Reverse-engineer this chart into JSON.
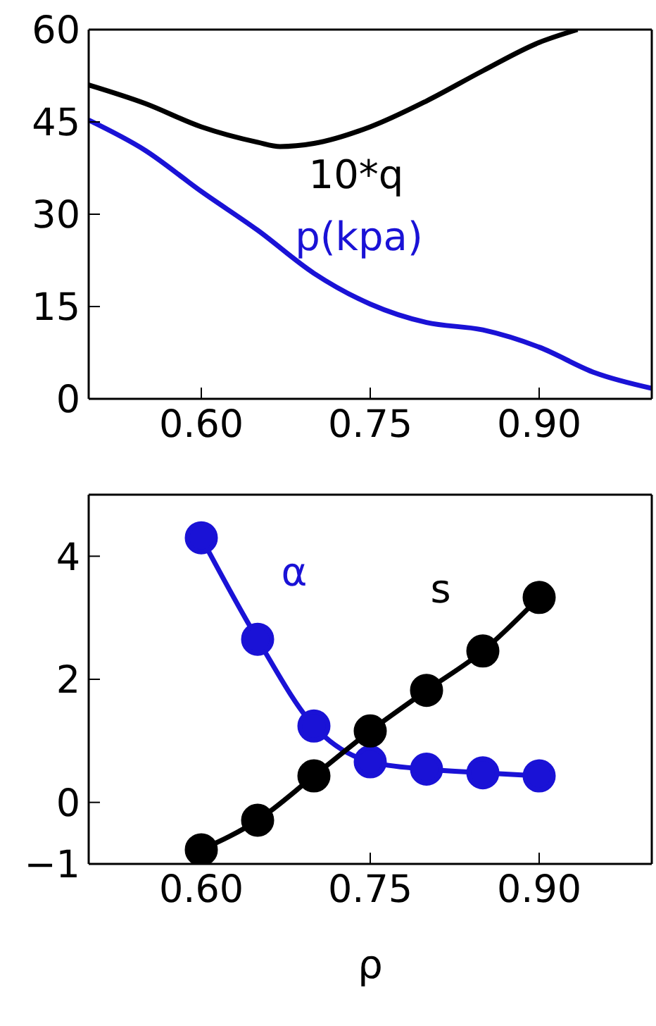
{
  "chart_data": [
    {
      "type": "line",
      "marker": "none",
      "line_style": "solid",
      "legend": false,
      "xlim": [
        0.5,
        1.0
      ],
      "xticks": [
        {
          "value": 0.6,
          "label": "0.60"
        },
        {
          "value": 0.75,
          "label": "0.75"
        },
        {
          "value": 0.9,
          "label": "0.90"
        }
      ],
      "ylim": [
        0,
        60
      ],
      "yticks": [
        0,
        15,
        30,
        45,
        60
      ],
      "series": [
        {
          "name": "10*q",
          "color": "#000000",
          "x": [
            0.5,
            0.55,
            0.6,
            0.65,
            0.67,
            0.7,
            0.75,
            0.8,
            0.85,
            0.9,
            0.934
          ],
          "values": [
            51,
            48,
            44.2,
            41.7,
            41,
            41.5,
            44.2,
            48.4,
            53.3,
            57.9,
            60
          ]
        },
        {
          "name": "p(kpa)",
          "color": "#1a12d6",
          "x": [
            0.5,
            0.55,
            0.6,
            0.65,
            0.7,
            0.75,
            0.8,
            0.85,
            0.9,
            0.95,
            1.0
          ],
          "values": [
            45.3,
            40.4,
            33.7,
            27.4,
            20.4,
            15.4,
            12.4,
            11.2,
            8.4,
            4.2,
            1.7
          ]
        }
      ]
    },
    {
      "type": "line",
      "marker": "circle",
      "line_style": "solid",
      "legend": false,
      "xlabel": "ρ",
      "xlim": [
        0.5,
        1.0
      ],
      "xticks": [
        {
          "value": 0.6,
          "label": "0.60"
        },
        {
          "value": 0.75,
          "label": "0.75"
        },
        {
          "value": 0.9,
          "label": "0.90"
        }
      ],
      "ylim": [
        -1,
        5
      ],
      "yticks": [
        {
          "value": -1,
          "label": "−1"
        },
        0,
        2,
        4
      ],
      "series": [
        {
          "name": "α",
          "color": "#1a12d6",
          "x": [
            0.6,
            0.65,
            0.7,
            0.75,
            0.8,
            0.85,
            0.9
          ],
          "values": [
            4.3,
            2.65,
            1.24,
            0.66,
            0.54,
            0.48,
            0.43
          ]
        },
        {
          "name": "s",
          "color": "#000000",
          "x": [
            0.6,
            0.65,
            0.7,
            0.75,
            0.8,
            0.85,
            0.9
          ],
          "values": [
            -0.77,
            -0.29,
            0.43,
            1.16,
            1.82,
            2.46,
            3.33
          ]
        }
      ]
    }
  ]
}
